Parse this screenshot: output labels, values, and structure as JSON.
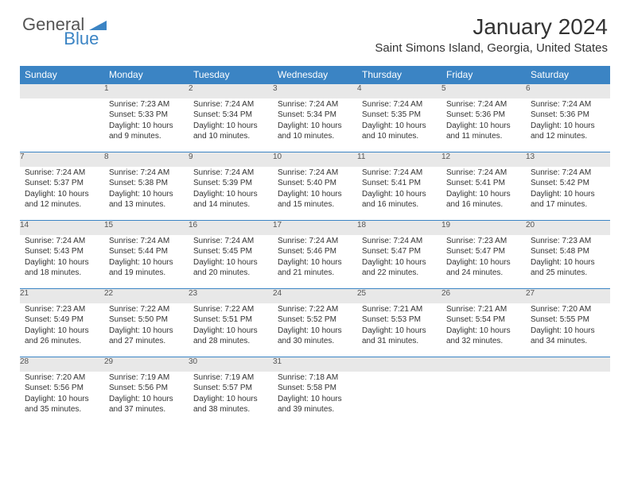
{
  "brand": {
    "part1": "General",
    "part2": "Blue"
  },
  "title": "January 2024",
  "location": "Saint Simons Island, Georgia, United States",
  "colors": {
    "accent": "#3b84c4",
    "header_text": "#ffffff",
    "daynum_bg": "#e8e8e8",
    "text": "#333333",
    "muted": "#555555"
  },
  "day_headers": [
    "Sunday",
    "Monday",
    "Tuesday",
    "Wednesday",
    "Thursday",
    "Friday",
    "Saturday"
  ],
  "weeks": [
    [
      null,
      {
        "n": "1",
        "sunrise": "Sunrise: 7:23 AM",
        "sunset": "Sunset: 5:33 PM",
        "dayl1": "Daylight: 10 hours",
        "dayl2": "and 9 minutes."
      },
      {
        "n": "2",
        "sunrise": "Sunrise: 7:24 AM",
        "sunset": "Sunset: 5:34 PM",
        "dayl1": "Daylight: 10 hours",
        "dayl2": "and 10 minutes."
      },
      {
        "n": "3",
        "sunrise": "Sunrise: 7:24 AM",
        "sunset": "Sunset: 5:34 PM",
        "dayl1": "Daylight: 10 hours",
        "dayl2": "and 10 minutes."
      },
      {
        "n": "4",
        "sunrise": "Sunrise: 7:24 AM",
        "sunset": "Sunset: 5:35 PM",
        "dayl1": "Daylight: 10 hours",
        "dayl2": "and 10 minutes."
      },
      {
        "n": "5",
        "sunrise": "Sunrise: 7:24 AM",
        "sunset": "Sunset: 5:36 PM",
        "dayl1": "Daylight: 10 hours",
        "dayl2": "and 11 minutes."
      },
      {
        "n": "6",
        "sunrise": "Sunrise: 7:24 AM",
        "sunset": "Sunset: 5:36 PM",
        "dayl1": "Daylight: 10 hours",
        "dayl2": "and 12 minutes."
      }
    ],
    [
      {
        "n": "7",
        "sunrise": "Sunrise: 7:24 AM",
        "sunset": "Sunset: 5:37 PM",
        "dayl1": "Daylight: 10 hours",
        "dayl2": "and 12 minutes."
      },
      {
        "n": "8",
        "sunrise": "Sunrise: 7:24 AM",
        "sunset": "Sunset: 5:38 PM",
        "dayl1": "Daylight: 10 hours",
        "dayl2": "and 13 minutes."
      },
      {
        "n": "9",
        "sunrise": "Sunrise: 7:24 AM",
        "sunset": "Sunset: 5:39 PM",
        "dayl1": "Daylight: 10 hours",
        "dayl2": "and 14 minutes."
      },
      {
        "n": "10",
        "sunrise": "Sunrise: 7:24 AM",
        "sunset": "Sunset: 5:40 PM",
        "dayl1": "Daylight: 10 hours",
        "dayl2": "and 15 minutes."
      },
      {
        "n": "11",
        "sunrise": "Sunrise: 7:24 AM",
        "sunset": "Sunset: 5:41 PM",
        "dayl1": "Daylight: 10 hours",
        "dayl2": "and 16 minutes."
      },
      {
        "n": "12",
        "sunrise": "Sunrise: 7:24 AM",
        "sunset": "Sunset: 5:41 PM",
        "dayl1": "Daylight: 10 hours",
        "dayl2": "and 16 minutes."
      },
      {
        "n": "13",
        "sunrise": "Sunrise: 7:24 AM",
        "sunset": "Sunset: 5:42 PM",
        "dayl1": "Daylight: 10 hours",
        "dayl2": "and 17 minutes."
      }
    ],
    [
      {
        "n": "14",
        "sunrise": "Sunrise: 7:24 AM",
        "sunset": "Sunset: 5:43 PM",
        "dayl1": "Daylight: 10 hours",
        "dayl2": "and 18 minutes."
      },
      {
        "n": "15",
        "sunrise": "Sunrise: 7:24 AM",
        "sunset": "Sunset: 5:44 PM",
        "dayl1": "Daylight: 10 hours",
        "dayl2": "and 19 minutes."
      },
      {
        "n": "16",
        "sunrise": "Sunrise: 7:24 AM",
        "sunset": "Sunset: 5:45 PM",
        "dayl1": "Daylight: 10 hours",
        "dayl2": "and 20 minutes."
      },
      {
        "n": "17",
        "sunrise": "Sunrise: 7:24 AM",
        "sunset": "Sunset: 5:46 PM",
        "dayl1": "Daylight: 10 hours",
        "dayl2": "and 21 minutes."
      },
      {
        "n": "18",
        "sunrise": "Sunrise: 7:24 AM",
        "sunset": "Sunset: 5:47 PM",
        "dayl1": "Daylight: 10 hours",
        "dayl2": "and 22 minutes."
      },
      {
        "n": "19",
        "sunrise": "Sunrise: 7:23 AM",
        "sunset": "Sunset: 5:47 PM",
        "dayl1": "Daylight: 10 hours",
        "dayl2": "and 24 minutes."
      },
      {
        "n": "20",
        "sunrise": "Sunrise: 7:23 AM",
        "sunset": "Sunset: 5:48 PM",
        "dayl1": "Daylight: 10 hours",
        "dayl2": "and 25 minutes."
      }
    ],
    [
      {
        "n": "21",
        "sunrise": "Sunrise: 7:23 AM",
        "sunset": "Sunset: 5:49 PM",
        "dayl1": "Daylight: 10 hours",
        "dayl2": "and 26 minutes."
      },
      {
        "n": "22",
        "sunrise": "Sunrise: 7:22 AM",
        "sunset": "Sunset: 5:50 PM",
        "dayl1": "Daylight: 10 hours",
        "dayl2": "and 27 minutes."
      },
      {
        "n": "23",
        "sunrise": "Sunrise: 7:22 AM",
        "sunset": "Sunset: 5:51 PM",
        "dayl1": "Daylight: 10 hours",
        "dayl2": "and 28 minutes."
      },
      {
        "n": "24",
        "sunrise": "Sunrise: 7:22 AM",
        "sunset": "Sunset: 5:52 PM",
        "dayl1": "Daylight: 10 hours",
        "dayl2": "and 30 minutes."
      },
      {
        "n": "25",
        "sunrise": "Sunrise: 7:21 AM",
        "sunset": "Sunset: 5:53 PM",
        "dayl1": "Daylight: 10 hours",
        "dayl2": "and 31 minutes."
      },
      {
        "n": "26",
        "sunrise": "Sunrise: 7:21 AM",
        "sunset": "Sunset: 5:54 PM",
        "dayl1": "Daylight: 10 hours",
        "dayl2": "and 32 minutes."
      },
      {
        "n": "27",
        "sunrise": "Sunrise: 7:20 AM",
        "sunset": "Sunset: 5:55 PM",
        "dayl1": "Daylight: 10 hours",
        "dayl2": "and 34 minutes."
      }
    ],
    [
      {
        "n": "28",
        "sunrise": "Sunrise: 7:20 AM",
        "sunset": "Sunset: 5:56 PM",
        "dayl1": "Daylight: 10 hours",
        "dayl2": "and 35 minutes."
      },
      {
        "n": "29",
        "sunrise": "Sunrise: 7:19 AM",
        "sunset": "Sunset: 5:56 PM",
        "dayl1": "Daylight: 10 hours",
        "dayl2": "and 37 minutes."
      },
      {
        "n": "30",
        "sunrise": "Sunrise: 7:19 AM",
        "sunset": "Sunset: 5:57 PM",
        "dayl1": "Daylight: 10 hours",
        "dayl2": "and 38 minutes."
      },
      {
        "n": "31",
        "sunrise": "Sunrise: 7:18 AM",
        "sunset": "Sunset: 5:58 PM",
        "dayl1": "Daylight: 10 hours",
        "dayl2": "and 39 minutes."
      },
      null,
      null,
      null
    ]
  ]
}
